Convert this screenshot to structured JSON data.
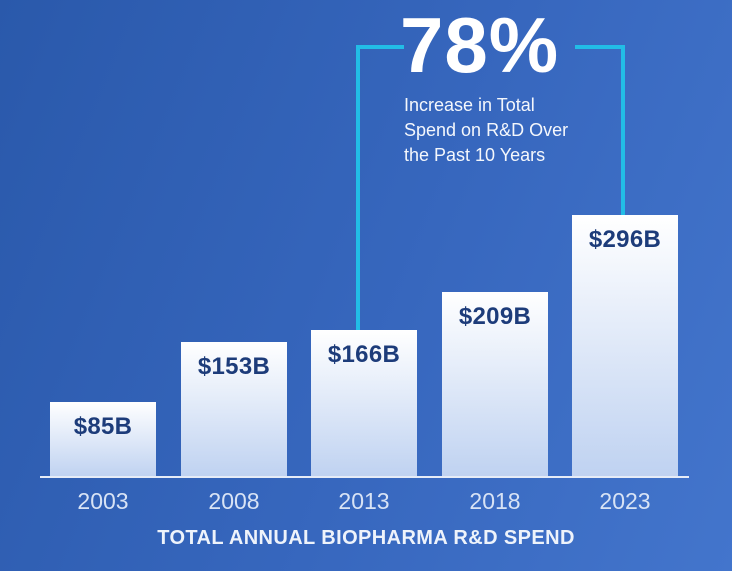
{
  "background": {
    "gradient_start": "#2a59ab",
    "gradient_end": "#4375cc"
  },
  "callout": {
    "percent": "78%",
    "lines": [
      "Increase in Total",
      "Spend on R&D Over",
      "the Past 10 Years"
    ],
    "bracket_color": "#22bde6"
  },
  "chart_data": {
    "type": "bar",
    "title": "TOTAL ANNUAL BIOPHARMA R&D SPEND",
    "categories": [
      "2003",
      "2008",
      "2013",
      "2018",
      "2023"
    ],
    "values": [
      85,
      153,
      166,
      209,
      296
    ],
    "value_labels": [
      "$85B",
      "$153B",
      "$166B",
      "$209B",
      "$296B"
    ],
    "ylim": [
      0,
      320
    ],
    "legend": "none",
    "grid": "off",
    "annotation": {
      "percent_increase": 78,
      "from_category": "2013",
      "to_category": "2023"
    },
    "colors": {
      "bar_gradient_top": "#ffffff",
      "bar_gradient_bottom": "#bfd2f1",
      "value_label_color": "#1d3c7a",
      "category_label_color": "#d8e3f5",
      "axis_color": "#e6ecf7"
    }
  }
}
